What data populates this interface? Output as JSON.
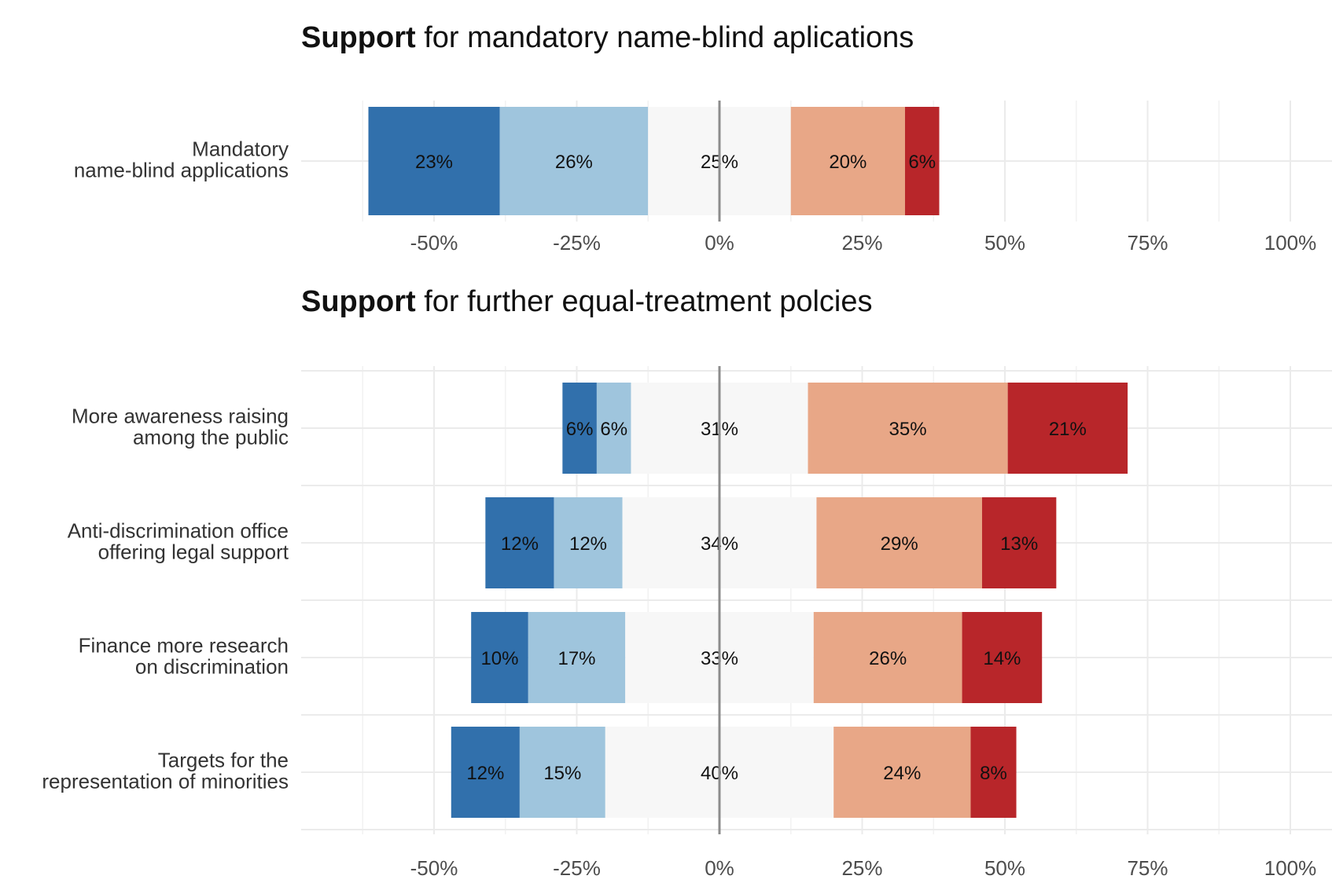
{
  "chart_data": [
    {
      "type": "bar",
      "orientation": "horizontal-diverging-stacked",
      "title_bold": "Support",
      "title_rest": " for mandatory name-blind aplications",
      "xlim": [
        -0.65,
        1.0
      ],
      "x_ticks": [
        -0.5,
        -0.25,
        0,
        0.25,
        0.5,
        0.75,
        1.0
      ],
      "x_tick_labels": [
        "-50%",
        "-25%",
        "0%",
        "25%",
        "50%",
        "75%",
        "100%"
      ],
      "segment_colors": [
        "#3170ac",
        "#9fc5dd",
        "#f7f7f7",
        "#e8a787",
        "#b8262a"
      ],
      "categories": [
        {
          "label_lines": [
            "Mandatory",
            "name-blind applications"
          ],
          "values": [
            23,
            26,
            25,
            20,
            6
          ],
          "value_labels": [
            "23%",
            "26%",
            "25%",
            "20%",
            "6%"
          ]
        }
      ]
    },
    {
      "type": "bar",
      "orientation": "horizontal-diverging-stacked",
      "title_bold": "Support",
      "title_rest": " for further equal-treatment polcies",
      "xlim": [
        -0.65,
        1.0
      ],
      "x_ticks": [
        -0.5,
        -0.25,
        0,
        0.25,
        0.5,
        0.75,
        1.0
      ],
      "x_tick_labels": [
        "-50%",
        "-25%",
        "0%",
        "25%",
        "50%",
        "75%",
        "100%"
      ],
      "segment_colors": [
        "#3170ac",
        "#9fc5dd",
        "#f7f7f7",
        "#e8a787",
        "#b8262a"
      ],
      "categories": [
        {
          "label_lines": [
            "More awareness raising",
            "among the public"
          ],
          "values": [
            6,
            6,
            31,
            35,
            21
          ],
          "value_labels": [
            "6%",
            "6%",
            "31%",
            "35%",
            "21%"
          ]
        },
        {
          "label_lines": [
            "Anti-discrimination office",
            "offering legal support"
          ],
          "values": [
            12,
            12,
            34,
            29,
            13
          ],
          "value_labels": [
            "12%",
            "12%",
            "34%",
            "29%",
            "13%"
          ]
        },
        {
          "label_lines": [
            "Finance more research",
            "on discrimination"
          ],
          "values": [
            10,
            17,
            33,
            26,
            14
          ],
          "value_labels": [
            "10%",
            "17%",
            "33%",
            "26%",
            "14%"
          ]
        },
        {
          "label_lines": [
            "Targets for the",
            "representation of minorities"
          ],
          "values": [
            12,
            15,
            40,
            24,
            8
          ],
          "value_labels": [
            "12%",
            "15%",
            "40%",
            "24%",
            "8%"
          ]
        }
      ]
    }
  ]
}
